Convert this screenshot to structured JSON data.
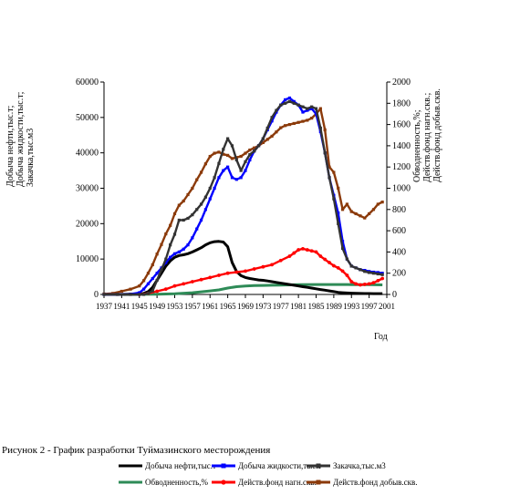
{
  "chart_data": {
    "type": "line",
    "caption": "Рисунок 2 - График разработки Туймазинского месторождения",
    "xlabel": "Год",
    "ylabel_left_lines": [
      "Добыча нефти,тыс.т;",
      "Добыча жидкости,тыс.т;",
      "Закачка,тыс.м3"
    ],
    "ylabel_right_lines": [
      "Обводненность,%;",
      "Действ.фонд нагн.скв.;",
      "Действ.фонд добыв.скв."
    ],
    "xlim": [
      1937,
      2001
    ],
    "ylim_left": [
      0,
      60000
    ],
    "ylim_right": [
      0,
      2000
    ],
    "x_ticks": [
      1937,
      1941,
      1945,
      1949,
      1953,
      1957,
      1961,
      1965,
      1969,
      1973,
      1977,
      1981,
      1985,
      1989,
      1993,
      1997,
      2001
    ],
    "y_ticks_left": [
      0,
      10000,
      20000,
      30000,
      40000,
      50000,
      60000
    ],
    "y_ticks_right": [
      0,
      200,
      400,
      600,
      800,
      1000,
      1200,
      1400,
      1600,
      1800,
      2000
    ],
    "legend_position": "bottom",
    "series": [
      {
        "name": "Добыча нефти,тыс.т",
        "axis": "left",
        "color": "#000000",
        "marker": "none",
        "x": [
          1937,
          1940,
          1943,
          1945,
          1946,
          1947,
          1948,
          1949,
          1950,
          1951,
          1952,
          1953,
          1954,
          1955,
          1956,
          1957,
          1958,
          1959,
          1960,
          1961,
          1962,
          1963,
          1964,
          1965,
          1966,
          1967,
          1968,
          1969,
          1970,
          1971,
          1972,
          1973,
          1974,
          1975,
          1976,
          1977,
          1978,
          1979,
          1980,
          1981,
          1982,
          1983,
          1984,
          1985,
          1986,
          1987,
          1988,
          1989,
          1990,
          1991,
          1992,
          1993,
          1994,
          1995,
          1996,
          1997,
          1998,
          1999,
          2000
        ],
        "y": [
          0,
          0,
          50,
          100,
          300,
          800,
          2000,
          4000,
          6000,
          8000,
          9500,
          10500,
          11000,
          11200,
          11500,
          12000,
          12600,
          13200,
          14000,
          14600,
          14900,
          15000,
          14800,
          13500,
          9000,
          6500,
          5300,
          4800,
          4500,
          4300,
          4100,
          4000,
          3800,
          3600,
          3400,
          3200,
          3000,
          2800,
          2600,
          2400,
          2200,
          2000,
          1800,
          1600,
          1400,
          1200,
          1000,
          800,
          600,
          500,
          400,
          350,
          300,
          280,
          260,
          250,
          240,
          230,
          220
        ]
      },
      {
        "name": "Добыча жидкости,тыс.т",
        "axis": "left",
        "color": "#0000ff",
        "marker": "square",
        "x": [
          1937,
          1940,
          1943,
          1945,
          1946,
          1947,
          1948,
          1949,
          1950,
          1951,
          1952,
          1953,
          1954,
          1955,
          1956,
          1957,
          1958,
          1959,
          1960,
          1961,
          1962,
          1963,
          1964,
          1965,
          1966,
          1967,
          1968,
          1969,
          1970,
          1971,
          1972,
          1973,
          1974,
          1975,
          1976,
          1977,
          1978,
          1979,
          1980,
          1981,
          1982,
          1983,
          1984,
          1985,
          1986,
          1987,
          1988,
          1989,
          1990,
          1991,
          1992,
          1993,
          1994,
          1995,
          1996,
          1997,
          1998,
          1999,
          2000
        ],
        "y": [
          0,
          0,
          100,
          500,
          1500,
          3000,
          4500,
          6000,
          7500,
          9000,
          10500,
          11500,
          12000,
          12800,
          14000,
          16000,
          18500,
          21000,
          24000,
          27000,
          30000,
          33000,
          35000,
          36000,
          33000,
          32500,
          33000,
          35000,
          38000,
          40500,
          42000,
          44000,
          46500,
          49000,
          51500,
          53500,
          55000,
          55500,
          54500,
          53500,
          51500,
          52000,
          52500,
          51000,
          46000,
          40000,
          33000,
          28000,
          23000,
          15000,
          10000,
          8000,
          7500,
          7000,
          6800,
          6500,
          6300,
          6200,
          6000
        ]
      },
      {
        "name": "Закачка,тыс.м3",
        "axis": "left",
        "color": "#333333",
        "marker": "square",
        "x": [
          1937,
          1940,
          1943,
          1945,
          1946,
          1947,
          1948,
          1949,
          1950,
          1951,
          1952,
          1953,
          1954,
          1955,
          1956,
          1957,
          1958,
          1959,
          1960,
          1961,
          1962,
          1963,
          1964,
          1965,
          1966,
          1967,
          1968,
          1969,
          1970,
          1971,
          1972,
          1973,
          1974,
          1975,
          1976,
          1977,
          1978,
          1979,
          1980,
          1981,
          1982,
          1983,
          1984,
          1985,
          1986,
          1987,
          1988,
          1989,
          1990,
          1991,
          1992,
          1993,
          1994,
          1995,
          1996,
          1997,
          1998,
          1999,
          2000
        ],
        "y": [
          0,
          0,
          0,
          0,
          0,
          300,
          1000,
          4000,
          7000,
          10000,
          14000,
          17000,
          21000,
          21000,
          21500,
          22500,
          24000,
          25500,
          27500,
          30000,
          33000,
          37000,
          41000,
          44000,
          42000,
          38000,
          35000,
          37500,
          39500,
          40500,
          42000,
          44000,
          47000,
          50000,
          52000,
          53500,
          54000,
          54500,
          54000,
          53500,
          53000,
          52500,
          53000,
          52500,
          47000,
          40000,
          33000,
          27000,
          20000,
          13000,
          10000,
          8000,
          7500,
          7000,
          6500,
          6200,
          6000,
          5800,
          5600
        ]
      },
      {
        "name": "Обводненность,%",
        "axis": "left",
        "color": "#2e8b57",
        "marker": "none",
        "x": [
          1937,
          1949,
          1953,
          1957,
          1961,
          1963,
          1965,
          1967,
          1969,
          1971,
          1973,
          1975,
          1977,
          1979,
          1981,
          1985,
          1989,
          1993,
          1997,
          2000
        ],
        "y": [
          0,
          50,
          200,
          500,
          1000,
          1300,
          1800,
          2200,
          2400,
          2500,
          2550,
          2600,
          2650,
          2700,
          2750,
          2800,
          2800,
          2780,
          2750,
          2700
        ]
      },
      {
        "name": "Действ.фонд нагн.скв.",
        "axis": "right",
        "color": "#ff0000",
        "marker": "circle",
        "x": [
          1945,
          1947,
          1949,
          1951,
          1953,
          1955,
          1957,
          1959,
          1961,
          1963,
          1965,
          1967,
          1969,
          1971,
          1973,
          1975,
          1977,
          1979,
          1980,
          1981,
          1982,
          1983,
          1984,
          1985,
          1986,
          1987,
          1988,
          1989,
          1990,
          1991,
          1992,
          1993,
          1994,
          1995,
          1996,
          1997,
          1998,
          1999,
          2000
        ],
        "y": [
          0,
          10,
          30,
          50,
          80,
          100,
          120,
          140,
          160,
          180,
          200,
          210,
          220,
          240,
          260,
          280,
          320,
          360,
          390,
          420,
          430,
          420,
          410,
          400,
          360,
          330,
          300,
          270,
          250,
          220,
          180,
          120,
          100,
          90,
          95,
          100,
          110,
          130,
          150
        ]
      },
      {
        "name": "Действ.фонд добыв.скв.",
        "axis": "right",
        "color": "#8b3a0a",
        "marker": "square",
        "x": [
          1937,
          1939,
          1941,
          1943,
          1945,
          1946,
          1947,
          1948,
          1949,
          1950,
          1951,
          1952,
          1953,
          1954,
          1955,
          1956,
          1957,
          1958,
          1959,
          1960,
          1961,
          1962,
          1963,
          1964,
          1965,
          1966,
          1967,
          1968,
          1969,
          1970,
          1971,
          1972,
          1973,
          1974,
          1975,
          1976,
          1977,
          1978,
          1979,
          1980,
          1981,
          1982,
          1983,
          1984,
          1985,
          1986,
          1987,
          1988,
          1989,
          1990,
          1991,
          1992,
          1993,
          1994,
          1995,
          1996,
          1997,
          1998,
          1999,
          2000
        ],
        "y": [
          5,
          10,
          30,
          50,
          80,
          130,
          200,
          280,
          380,
          470,
          570,
          650,
          760,
          840,
          880,
          940,
          1000,
          1080,
          1150,
          1230,
          1300,
          1330,
          1340,
          1320,
          1310,
          1280,
          1290,
          1300,
          1330,
          1360,
          1380,
          1400,
          1430,
          1460,
          1490,
          1530,
          1570,
          1590,
          1600,
          1610,
          1620,
          1630,
          1640,
          1660,
          1700,
          1750,
          1550,
          1200,
          1150,
          1000,
          800,
          850,
          780,
          760,
          740,
          720,
          760,
          800,
          850,
          870
        ]
      }
    ]
  }
}
